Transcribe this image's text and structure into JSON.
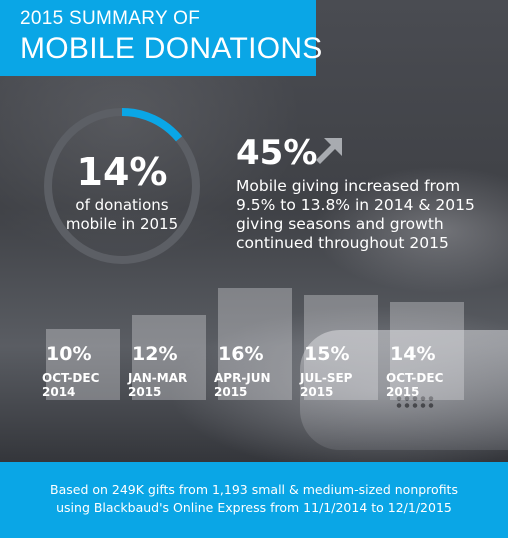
{
  "header": {
    "line1": "2015 SUMMARY OF",
    "line2": "MOBILE DONATIONS"
  },
  "colors": {
    "accent": "#0aa6e6",
    "ring_track": "#5c5f65"
  },
  "ring": {
    "value": "14%",
    "fraction": 0.14,
    "caption_line1": "of donations",
    "caption_line2": "mobile in 2015"
  },
  "growth": {
    "value": "45%",
    "icon": "arrow-up-right-icon",
    "text": "Mobile giving increased from 9.5% to 13.8% in 2014 & 2015 giving seasons and growth continued throughout 2015"
  },
  "chart_data": {
    "type": "bar",
    "categories": [
      "OCT-DEC 2014",
      "JAN-MAR 2015",
      "APR-JUN 2015",
      "JUL-SEP 2015",
      "OCT-DEC 2015"
    ],
    "category_lines": [
      [
        "OCT-DEC",
        "2014"
      ],
      [
        "JAN-MAR",
        "2015"
      ],
      [
        "APR-JUN",
        "2015"
      ],
      [
        "JUL-SEP",
        "2015"
      ],
      [
        "OCT-DEC",
        "2015"
      ]
    ],
    "values": [
      10,
      12,
      16,
      15,
      14
    ],
    "value_labels": [
      "10%",
      "12%",
      "16%",
      "15%",
      "14%"
    ],
    "ylim": [
      0,
      16
    ],
    "grid": false
  },
  "footer": {
    "line1": "Based on 249K gifts from 1,193 small & medium-sized nonprofits",
    "line2": "using Blackbaud's Online Express from 11/1/2014 to 12/1/2015"
  }
}
